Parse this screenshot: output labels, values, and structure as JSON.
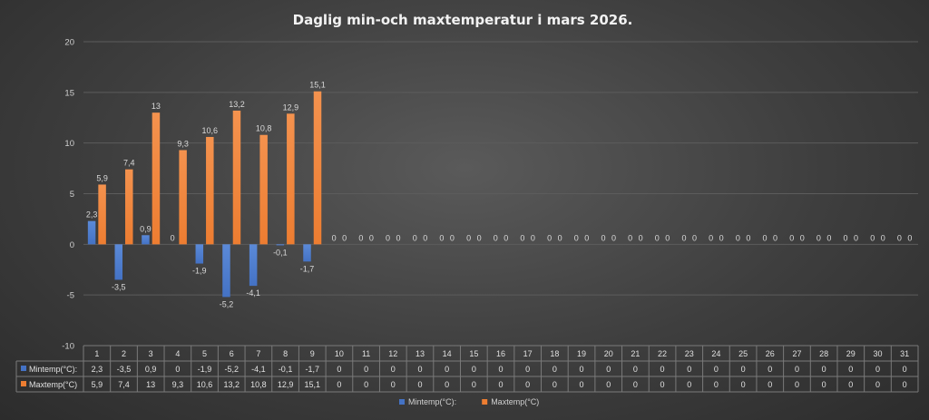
{
  "colors": {
    "min": "#4472c4",
    "max": "#ed7d31",
    "grid": "#5c5c5c",
    "table_line": "#7a7a7a"
  },
  "chart_data": {
    "type": "bar",
    "title": "Daglig min-och maxtemperatur i mars 2026.",
    "categories": [
      "1",
      "2",
      "3",
      "4",
      "5",
      "6",
      "7",
      "8",
      "9",
      "10",
      "11",
      "12",
      "13",
      "14",
      "15",
      "16",
      "17",
      "18",
      "19",
      "20",
      "21",
      "22",
      "23",
      "24",
      "25",
      "26",
      "27",
      "28",
      "29",
      "30",
      "31"
    ],
    "series": [
      {
        "name": "Mintemp(°C):",
        "values": [
          2.3,
          -3.5,
          0.9,
          0,
          -1.9,
          -5.2,
          -4.1,
          -0.1,
          -1.7,
          0,
          0,
          0,
          0,
          0,
          0,
          0,
          0,
          0,
          0,
          0,
          0,
          0,
          0,
          0,
          0,
          0,
          0,
          0,
          0,
          0,
          0
        ],
        "labels": [
          "2,3",
          "-3,5",
          "0,9",
          "0",
          "-1,9",
          "-5,2",
          "-4,1",
          "-0,1",
          "-1,7",
          "0",
          "0",
          "0",
          "0",
          "0",
          "0",
          "0",
          "0",
          "0",
          "0",
          "0",
          "0",
          "0",
          "0",
          "0",
          "0",
          "0",
          "0",
          "0",
          "0",
          "0",
          "0"
        ]
      },
      {
        "name": "Maxtemp(°C)",
        "values": [
          5.9,
          7.4,
          13,
          9.3,
          10.6,
          13.2,
          10.8,
          12.9,
          15.1,
          0,
          0,
          0,
          0,
          0,
          0,
          0,
          0,
          0,
          0,
          0,
          0,
          0,
          0,
          0,
          0,
          0,
          0,
          0,
          0,
          0,
          0
        ],
        "labels": [
          "5,9",
          "7,4",
          "13",
          "9,3",
          "10,6",
          "13,2",
          "10,8",
          "12,9",
          "15,1",
          "0",
          "0",
          "0",
          "0",
          "0",
          "0",
          "0",
          "0",
          "0",
          "0",
          "0",
          "0",
          "0",
          "0",
          "0",
          "0",
          "0",
          "0",
          "0",
          "0",
          "0",
          "0"
        ]
      }
    ],
    "ylim": [
      -10,
      20
    ],
    "yticks": [
      "-10",
      "-5",
      "0",
      "5",
      "10",
      "15",
      "20"
    ],
    "grid": true,
    "data_table": true,
    "legend": "bottom"
  }
}
